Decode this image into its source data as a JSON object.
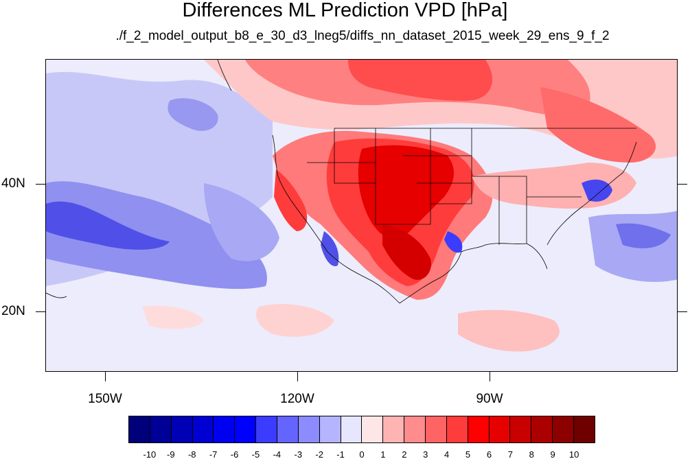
{
  "title": "Differences ML Prediction VPD [hPa]",
  "subtitle": "./f_2_model_output_b8_e_30_d3_lneg5/diffs_nn_dataset_2015_week_29_ens_9_f_2",
  "lat_labels": [
    "40N",
    "20N"
  ],
  "lon_labels": [
    "150W",
    "120W",
    "90W"
  ],
  "colorbar": {
    "labels": [
      "-10",
      "-9",
      "-8",
      "-7",
      "-6",
      "-5",
      "-4",
      "-3",
      "-2",
      "-1",
      "0",
      "1",
      "2",
      "3",
      "4",
      "5",
      "6",
      "7",
      "8",
      "9",
      "10"
    ],
    "colors": [
      "#00007a",
      "#000096",
      "#0000b4",
      "#0000d2",
      "#0000f0",
      "#0000ff",
      "#3c3cff",
      "#6464ff",
      "#8c8cff",
      "#b4b4ff",
      "#e6e6ff",
      "#ffe6e6",
      "#ffb4b4",
      "#ff8c8c",
      "#ff6464",
      "#ff3c3c",
      "#ff0000",
      "#e60000",
      "#c80000",
      "#aa0000",
      "#8c0000",
      "#6e0000"
    ]
  }
}
